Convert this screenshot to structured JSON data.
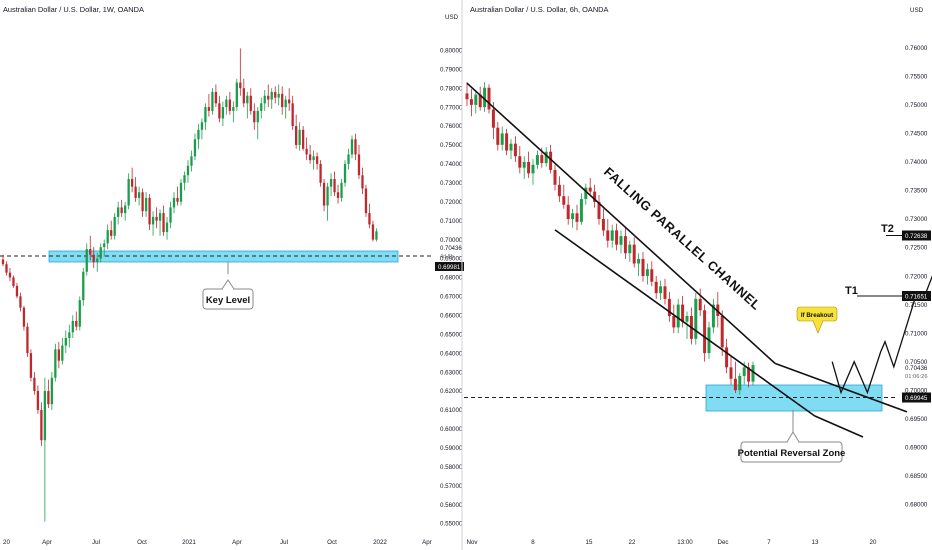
{
  "panels": {
    "left": {
      "title": "Australian Dollar / U.S. Dollar, 1W, OANDA",
      "currency": "USD",
      "price_label": "0.70436",
      "countdown": "4d 8h",
      "key_price_tag": "0.69981",
      "annotation": "Key Level"
    },
    "right": {
      "title": "Australian Dollar / U.S. Dollar, 6h, OANDA",
      "currency": "USD",
      "channel_label": "FALLING PARALLEL CHANNEL",
      "breakout_label": "If Breakout",
      "zone_label": "Potential Reversal Zone",
      "target1_label": "T1",
      "target2_label": "T2",
      "target1_price": "0.71651",
      "target2_price": "0.72638",
      "current_price": "0.70436",
      "countdown": "01:06:26",
      "support_price": "0.69945"
    }
  },
  "colors": {
    "bull": "#1b9e4b",
    "bear": "#c0282d",
    "zone_fill": "#6ad6f0",
    "zone_stroke": "#2aa7cf",
    "callout_fill": "#f7e23a"
  },
  "chart_data": [
    {
      "type": "candlestick",
      "title": "Australian Dollar / U.S. Dollar, 1W, OANDA",
      "timeframe": "1W",
      "ylim": [
        0.5455,
        0.8155
      ],
      "yticks": [
        0.55,
        0.56,
        0.57,
        0.58,
        0.59,
        0.6,
        0.61,
        0.62,
        0.63,
        0.64,
        0.65,
        0.66,
        0.67,
        0.68,
        0.69,
        0.7,
        0.71,
        0.72,
        0.73,
        0.74,
        0.75,
        0.76,
        0.77,
        0.78,
        0.79,
        0.8
      ],
      "x_tick_labels": [
        "20",
        "Apr",
        "Jul",
        "Oct",
        "2021",
        "Apr",
        "Jul",
        "Oct",
        "2022",
        "Apr"
      ],
      "key_level": {
        "price": 0.6998,
        "zone": [
          0.6985,
          0.7005
        ]
      },
      "ohlc": [
        [
          0.6895,
          0.692,
          0.686,
          0.687
        ],
        [
          0.687,
          0.6885,
          0.681,
          0.6825
        ],
        [
          0.6825,
          0.685,
          0.678,
          0.68
        ],
        [
          0.68,
          0.681,
          0.6745,
          0.6755
        ],
        [
          0.6755,
          0.677,
          0.669,
          0.67
        ],
        [
          0.67,
          0.672,
          0.662,
          0.664
        ],
        [
          0.664,
          0.665,
          0.652,
          0.654
        ],
        [
          0.654,
          0.656,
          0.638,
          0.64
        ],
        [
          0.64,
          0.642,
          0.625,
          0.627
        ],
        [
          0.627,
          0.63,
          0.618,
          0.62
        ],
        [
          0.62,
          0.623,
          0.608,
          0.61
        ],
        [
          0.61,
          0.614,
          0.591,
          0.594
        ],
        [
          0.594,
          0.627,
          0.551,
          0.62
        ],
        [
          0.62,
          0.626,
          0.611,
          0.613
        ],
        [
          0.613,
          0.63,
          0.61,
          0.627
        ],
        [
          0.627,
          0.645,
          0.625,
          0.642
        ],
        [
          0.642,
          0.646,
          0.632,
          0.636
        ],
        [
          0.636,
          0.648,
          0.634,
          0.644
        ],
        [
          0.644,
          0.652,
          0.64,
          0.648
        ],
        [
          0.648,
          0.655,
          0.643,
          0.651
        ],
        [
          0.651,
          0.66,
          0.648,
          0.657
        ],
        [
          0.657,
          0.662,
          0.652,
          0.654
        ],
        [
          0.654,
          0.67,
          0.652,
          0.668
        ],
        [
          0.668,
          0.685,
          0.665,
          0.683
        ],
        [
          0.683,
          0.698,
          0.681,
          0.695
        ],
        [
          0.695,
          0.702,
          0.689,
          0.692
        ],
        [
          0.692,
          0.696,
          0.685,
          0.688
        ],
        [
          0.688,
          0.693,
          0.683,
          0.69
        ],
        [
          0.69,
          0.698,
          0.688,
          0.696
        ],
        [
          0.696,
          0.7,
          0.691,
          0.698
        ],
        [
          0.698,
          0.708,
          0.695,
          0.705
        ],
        [
          0.705,
          0.71,
          0.7,
          0.702
        ],
        [
          0.702,
          0.714,
          0.7,
          0.712
        ],
        [
          0.712,
          0.72,
          0.708,
          0.717
        ],
        [
          0.717,
          0.721,
          0.712,
          0.714
        ],
        [
          0.714,
          0.72,
          0.71,
          0.718
        ],
        [
          0.718,
          0.735,
          0.716,
          0.732
        ],
        [
          0.732,
          0.738,
          0.725,
          0.728
        ],
        [
          0.728,
          0.733,
          0.72,
          0.722
        ],
        [
          0.722,
          0.728,
          0.718,
          0.725
        ],
        [
          0.725,
          0.727,
          0.712,
          0.715
        ],
        [
          0.715,
          0.725,
          0.712,
          0.722
        ],
        [
          0.722,
          0.724,
          0.705,
          0.708
        ],
        [
          0.708,
          0.715,
          0.702,
          0.712
        ],
        [
          0.712,
          0.717,
          0.706,
          0.71
        ],
        [
          0.71,
          0.716,
          0.702,
          0.714
        ],
        [
          0.714,
          0.718,
          0.702,
          0.704
        ],
        [
          0.704,
          0.712,
          0.7,
          0.709
        ],
        [
          0.709,
          0.72,
          0.706,
          0.717
        ],
        [
          0.717,
          0.725,
          0.714,
          0.722
        ],
        [
          0.722,
          0.728,
          0.718,
          0.72
        ],
        [
          0.72,
          0.732,
          0.718,
          0.73
        ],
        [
          0.73,
          0.736,
          0.726,
          0.734
        ],
        [
          0.734,
          0.742,
          0.73,
          0.739
        ],
        [
          0.739,
          0.747,
          0.736,
          0.744
        ],
        [
          0.744,
          0.756,
          0.742,
          0.753
        ],
        [
          0.753,
          0.761,
          0.748,
          0.758
        ],
        [
          0.758,
          0.764,
          0.753,
          0.762
        ],
        [
          0.762,
          0.772,
          0.758,
          0.77
        ],
        [
          0.77,
          0.777,
          0.765,
          0.768
        ],
        [
          0.768,
          0.78,
          0.766,
          0.778
        ],
        [
          0.778,
          0.782,
          0.77,
          0.772
        ],
        [
          0.772,
          0.776,
          0.762,
          0.764
        ],
        [
          0.764,
          0.773,
          0.76,
          0.77
        ],
        [
          0.77,
          0.776,
          0.766,
          0.774
        ],
        [
          0.774,
          0.778,
          0.766,
          0.768
        ],
        [
          0.768,
          0.773,
          0.762,
          0.77
        ],
        [
          0.77,
          0.785,
          0.768,
          0.783
        ],
        [
          0.783,
          0.801,
          0.776,
          0.78
        ],
        [
          0.78,
          0.785,
          0.77,
          0.772
        ],
        [
          0.772,
          0.778,
          0.764,
          0.776
        ],
        [
          0.776,
          0.78,
          0.766,
          0.768
        ],
        [
          0.768,
          0.772,
          0.758,
          0.762
        ],
        [
          0.762,
          0.77,
          0.753,
          0.768
        ],
        [
          0.768,
          0.775,
          0.764,
          0.772
        ],
        [
          0.772,
          0.779,
          0.768,
          0.776
        ],
        [
          0.776,
          0.782,
          0.77,
          0.774
        ],
        [
          0.774,
          0.78,
          0.769,
          0.778
        ],
        [
          0.778,
          0.781,
          0.772,
          0.775
        ],
        [
          0.775,
          0.782,
          0.771,
          0.777
        ],
        [
          0.777,
          0.781,
          0.766,
          0.77
        ],
        [
          0.77,
          0.776,
          0.764,
          0.774
        ],
        [
          0.774,
          0.78,
          0.768,
          0.772
        ],
        [
          0.772,
          0.776,
          0.758,
          0.76
        ],
        [
          0.76,
          0.766,
          0.748,
          0.75
        ],
        [
          0.75,
          0.762,
          0.747,
          0.758
        ],
        [
          0.758,
          0.76,
          0.747,
          0.748
        ],
        [
          0.748,
          0.754,
          0.742,
          0.745
        ],
        [
          0.745,
          0.75,
          0.74,
          0.742
        ],
        [
          0.742,
          0.747,
          0.737,
          0.744
        ],
        [
          0.744,
          0.746,
          0.737,
          0.74
        ],
        [
          0.74,
          0.742,
          0.728,
          0.73
        ],
        [
          0.73,
          0.732,
          0.715,
          0.718
        ],
        [
          0.718,
          0.73,
          0.71,
          0.728
        ],
        [
          0.728,
          0.735,
          0.723,
          0.732
        ],
        [
          0.732,
          0.736,
          0.723,
          0.725
        ],
        [
          0.725,
          0.729,
          0.719,
          0.722
        ],
        [
          0.722,
          0.732,
          0.72,
          0.73
        ],
        [
          0.73,
          0.742,
          0.728,
          0.74
        ],
        [
          0.74,
          0.748,
          0.737,
          0.745
        ],
        [
          0.745,
          0.755,
          0.743,
          0.753
        ],
        [
          0.753,
          0.756,
          0.742,
          0.745
        ],
        [
          0.745,
          0.75,
          0.732,
          0.734
        ],
        [
          0.734,
          0.738,
          0.724,
          0.727
        ],
        [
          0.727,
          0.729,
          0.712,
          0.714
        ],
        [
          0.714,
          0.719,
          0.706,
          0.708
        ],
        [
          0.708,
          0.71,
          0.699,
          0.7
        ],
        [
          0.7,
          0.706,
          0.699,
          0.7044
        ]
      ]
    },
    {
      "type": "candlestick",
      "title": "Australian Dollar / U.S. Dollar, 6h, OANDA",
      "timeframe": "6h",
      "ylim": [
        0.6783,
        0.7633
      ],
      "yticks": [
        0.68,
        0.685,
        0.69,
        0.695,
        0.7,
        0.705,
        0.71,
        0.715,
        0.72,
        0.725,
        0.73,
        0.735,
        0.74,
        0.745,
        0.75,
        0.755,
        0.76
      ],
      "x_tick_labels": [
        "Nov",
        "8",
        "15",
        "22",
        "13:00",
        "Dec",
        "7",
        "13",
        "20"
      ],
      "channel": {
        "upper": [
          [
            0,
            0.7538
          ],
          [
            70,
            0.7047
          ]
        ],
        "lower": [
          [
            20,
            0.7281
          ],
          [
            79,
            0.6955
          ]
        ],
        "lower_extension": [
          [
            79,
            0.6955
          ],
          [
            90,
            0.6918
          ]
        ],
        "upper_extension": [
          [
            70,
            0.7047
          ],
          [
            100,
            0.6962
          ]
        ]
      },
      "reversal_zone": [
        0.6972,
        0.7015
      ],
      "support": 0.69945,
      "targets": {
        "T1": 0.71651,
        "T2": 0.72638
      },
      "projection": [
        [
          83,
          0.705
        ],
        [
          85,
          0.6996
        ],
        [
          88,
          0.705
        ],
        [
          91,
          0.6996
        ],
        [
          94,
          0.7067
        ],
        [
          95,
          0.7085
        ],
        [
          97,
          0.7041
        ],
        [
          102,
          0.7165
        ],
        [
          104,
          0.7165
        ],
        [
          109,
          0.7264
        ]
      ],
      "ohlc": [
        [
          0.752,
          0.754,
          0.7498,
          0.751
        ],
        [
          0.751,
          0.7528,
          0.748,
          0.75
        ],
        [
          0.75,
          0.7526,
          0.7485,
          0.7518
        ],
        [
          0.7518,
          0.7532,
          0.749,
          0.7496
        ],
        [
          0.7496,
          0.754,
          0.7488,
          0.753
        ],
        [
          0.753,
          0.7536,
          0.7485,
          0.7492
        ],
        [
          0.7492,
          0.7505,
          0.744,
          0.746
        ],
        [
          0.746,
          0.747,
          0.742,
          0.743
        ],
        [
          0.743,
          0.7462,
          0.742,
          0.745
        ],
        [
          0.745,
          0.7458,
          0.7412,
          0.742
        ],
        [
          0.742,
          0.744,
          0.7405,
          0.7432
        ],
        [
          0.7432,
          0.7445,
          0.74,
          0.741
        ],
        [
          0.741,
          0.7428,
          0.738,
          0.739
        ],
        [
          0.739,
          0.741,
          0.737,
          0.74
        ],
        [
          0.74,
          0.7418,
          0.7372,
          0.738
        ],
        [
          0.738,
          0.7405,
          0.736,
          0.7395
        ],
        [
          0.7395,
          0.742,
          0.7388,
          0.7412
        ],
        [
          0.7412,
          0.7425,
          0.739,
          0.7398
        ],
        [
          0.7398,
          0.7426,
          0.7392,
          0.7418
        ],
        [
          0.7418,
          0.743,
          0.738,
          0.7386
        ],
        [
          0.7386,
          0.7395,
          0.735,
          0.736
        ],
        [
          0.736,
          0.7375,
          0.733,
          0.734
        ],
        [
          0.734,
          0.736,
          0.7318,
          0.7325
        ],
        [
          0.7325,
          0.734,
          0.729,
          0.73
        ],
        [
          0.73,
          0.7318,
          0.7285,
          0.731
        ],
        [
          0.731,
          0.7325,
          0.728,
          0.7295
        ],
        [
          0.7295,
          0.7345,
          0.729,
          0.7335
        ],
        [
          0.7335,
          0.7362,
          0.7325,
          0.7355
        ],
        [
          0.7355,
          0.7372,
          0.734,
          0.7348
        ],
        [
          0.7348,
          0.736,
          0.732,
          0.733
        ],
        [
          0.733,
          0.7342,
          0.729,
          0.73
        ],
        [
          0.73,
          0.7318,
          0.727,
          0.728
        ],
        [
          0.728,
          0.73,
          0.725,
          0.7262
        ],
        [
          0.7262,
          0.729,
          0.725,
          0.728
        ],
        [
          0.728,
          0.7292,
          0.7245,
          0.7255
        ],
        [
          0.7255,
          0.728,
          0.724,
          0.727
        ],
        [
          0.727,
          0.7285,
          0.723,
          0.724
        ],
        [
          0.724,
          0.7262,
          0.7225,
          0.7255
        ],
        [
          0.7255,
          0.7268,
          0.7215,
          0.7222
        ],
        [
          0.7222,
          0.724,
          0.72,
          0.723
        ],
        [
          0.723,
          0.7242,
          0.719,
          0.72
        ],
        [
          0.72,
          0.7222,
          0.7185,
          0.7212
        ],
        [
          0.7212,
          0.7226,
          0.7182,
          0.719
        ],
        [
          0.719,
          0.72,
          0.716,
          0.717
        ],
        [
          0.717,
          0.7192,
          0.7158,
          0.7182
        ],
        [
          0.7182,
          0.7195,
          0.715,
          0.716
        ],
        [
          0.716,
          0.7172,
          0.712,
          0.713
        ],
        [
          0.713,
          0.715,
          0.71,
          0.711
        ],
        [
          0.711,
          0.716,
          0.71,
          0.715
        ],
        [
          0.715,
          0.7165,
          0.711,
          0.712
        ],
        [
          0.712,
          0.7138,
          0.709,
          0.713
        ],
        [
          0.713,
          0.7145,
          0.708,
          0.709
        ],
        [
          0.709,
          0.717,
          0.708,
          0.716
        ],
        [
          0.716,
          0.7178,
          0.713,
          0.714
        ],
        [
          0.714,
          0.715,
          0.705,
          0.7065
        ],
        [
          0.7065,
          0.712,
          0.7055,
          0.711
        ],
        [
          0.711,
          0.716,
          0.71,
          0.715
        ],
        [
          0.715,
          0.7172,
          0.711,
          0.713
        ],
        [
          0.713,
          0.714,
          0.706,
          0.7075
        ],
        [
          0.7075,
          0.709,
          0.703,
          0.704
        ],
        [
          0.704,
          0.706,
          0.701,
          0.702
        ],
        [
          0.702,
          0.705,
          0.6995,
          0.7
        ],
        [
          0.7,
          0.703,
          0.6992,
          0.7025
        ],
        [
          0.7025,
          0.705,
          0.701,
          0.704
        ],
        [
          0.704,
          0.7048,
          0.7005,
          0.7015
        ],
        [
          0.7015,
          0.705,
          0.7008,
          0.7044
        ]
      ]
    }
  ]
}
